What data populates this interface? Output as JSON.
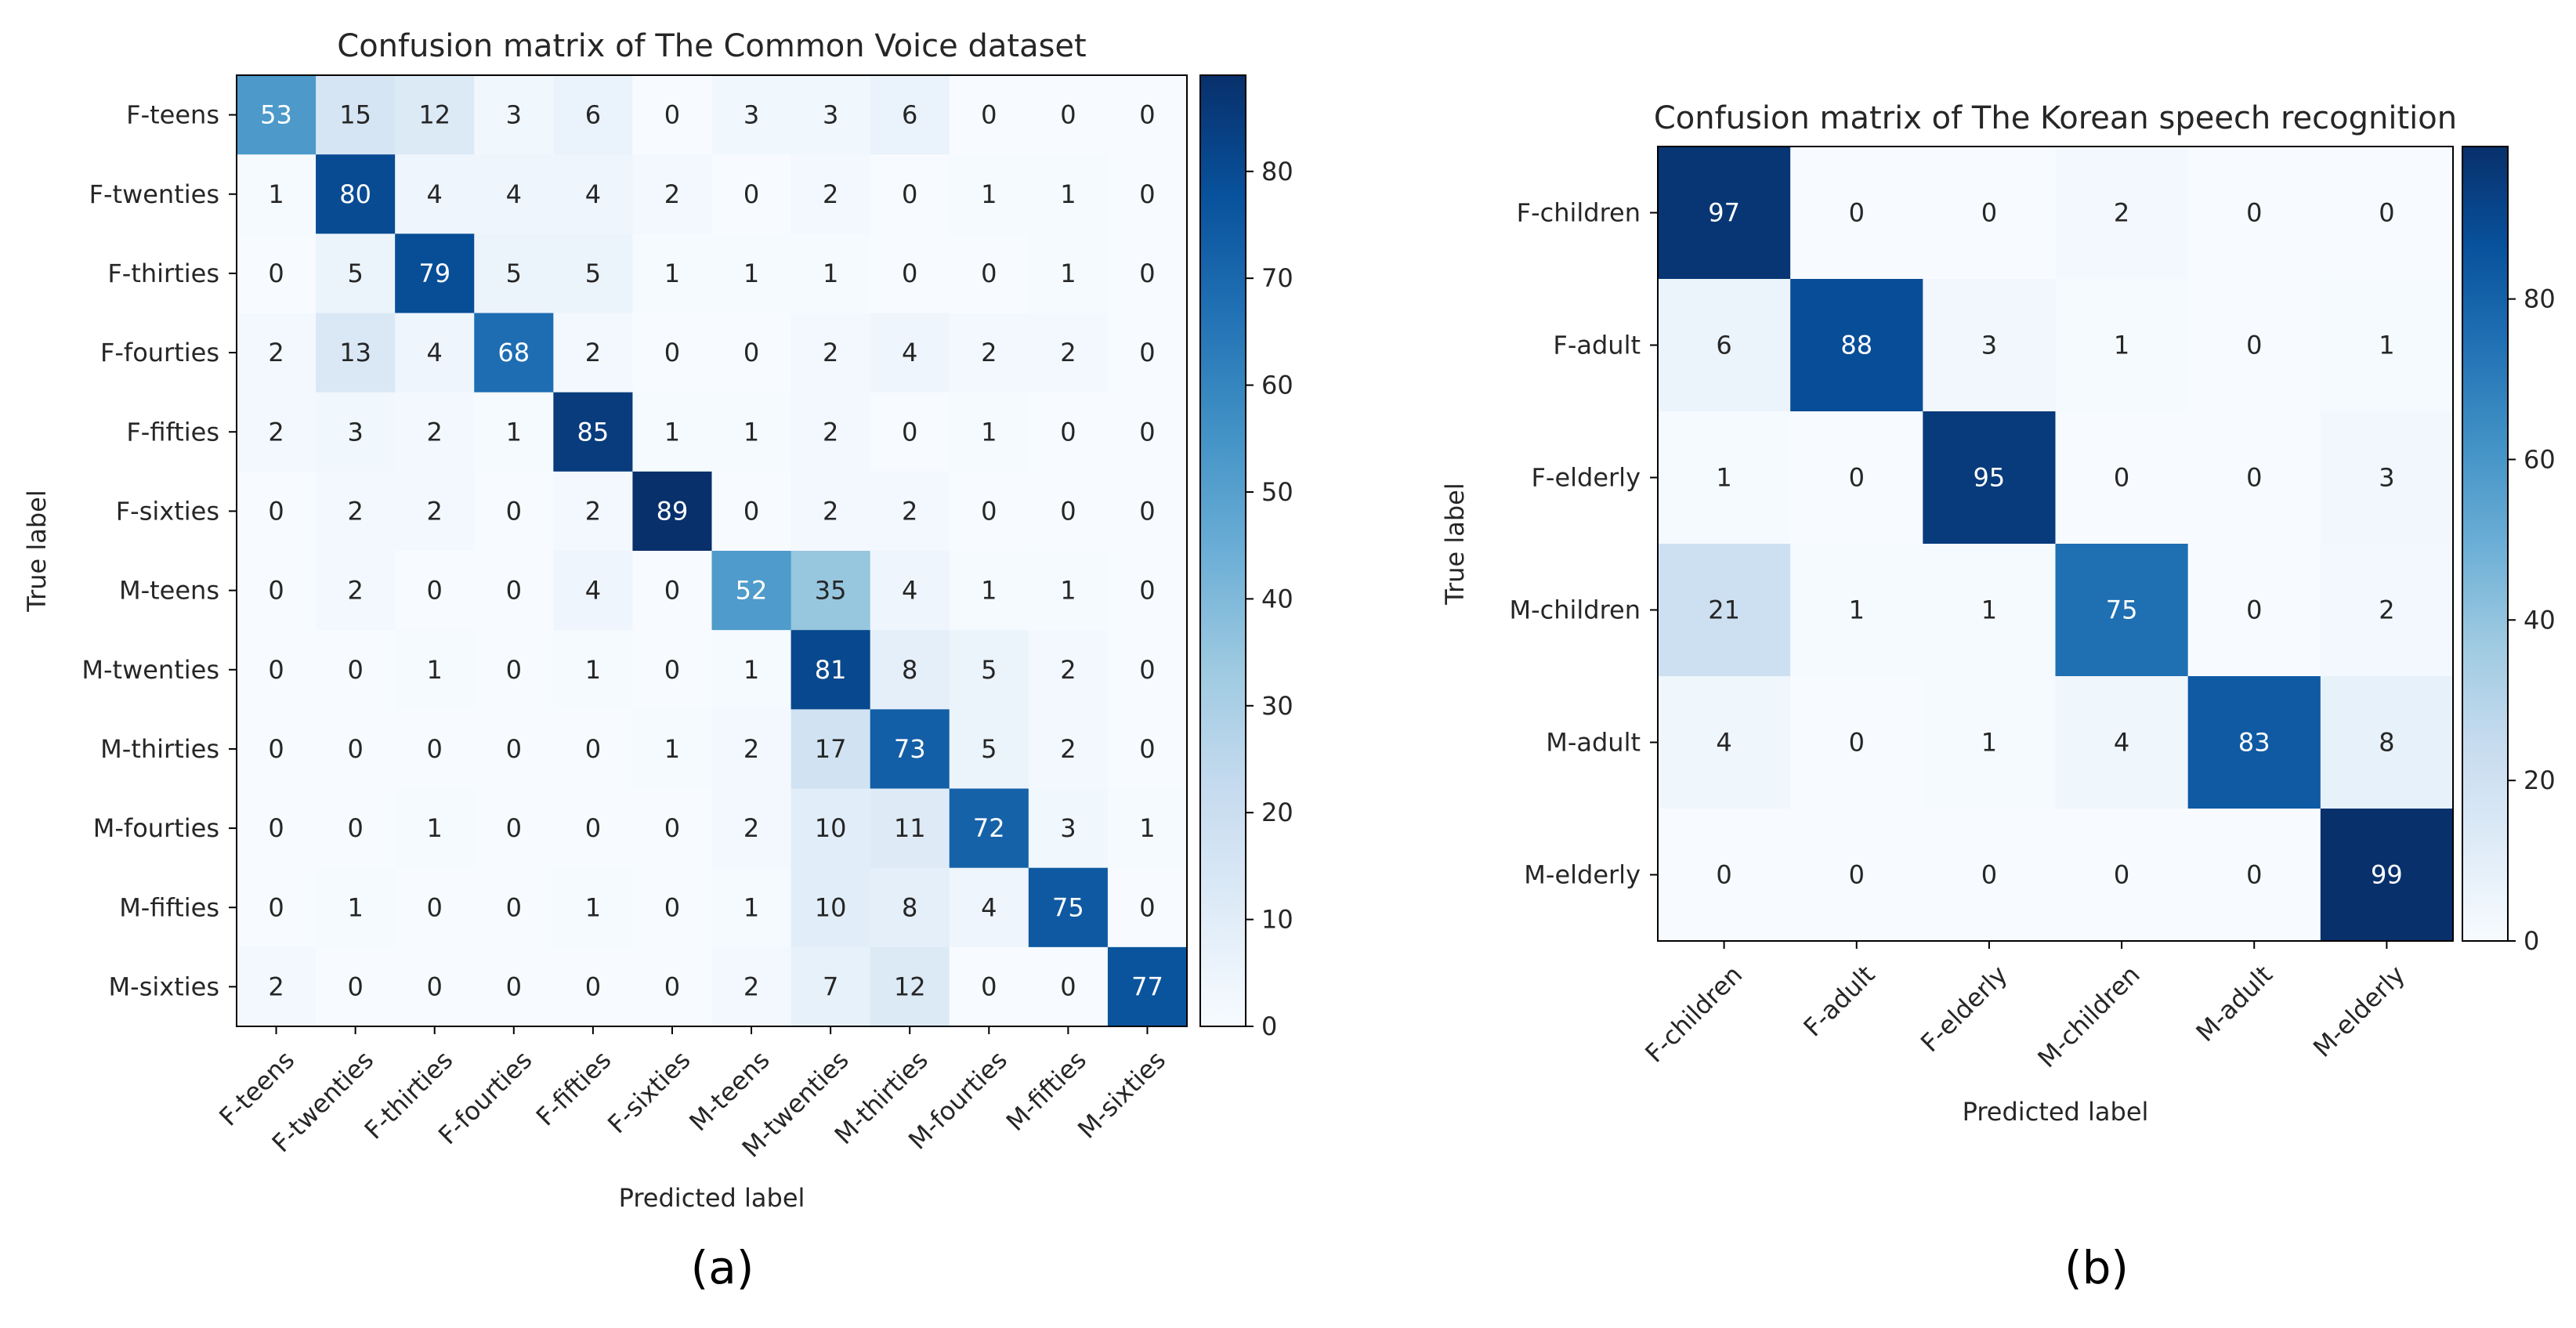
{
  "figure": {
    "panel_labels": [
      "(a)",
      "(b)"
    ]
  },
  "colors": {
    "cmap_low": "#f7fbff",
    "cmap_high": "#08306b",
    "text_dark": "#262626",
    "text_light": "#ffffff"
  },
  "chart_data": [
    {
      "type": "heatmap",
      "title": "Confusion matrix of The Common Voice dataset",
      "xlabel": "Predicted label",
      "ylabel": "True label",
      "row_labels": [
        "F-teens",
        "F-twenties",
        "F-thirties",
        "F-fourties",
        "F-fifties",
        "F-sixties",
        "M-teens",
        "M-twenties",
        "M-thirties",
        "M-fourties",
        "M-fifties",
        "M-sixties"
      ],
      "col_labels": [
        "F-teens",
        "F-twenties",
        "F-thirties",
        "F-fourties",
        "F-fifties",
        "F-sixties",
        "M-teens",
        "M-twenties",
        "M-thirties",
        "M-fourties",
        "M-fifties",
        "M-sixties"
      ],
      "matrix": [
        [
          53,
          15,
          12,
          3,
          6,
          0,
          3,
          3,
          6,
          0,
          0,
          0
        ],
        [
          1,
          80,
          4,
          4,
          4,
          2,
          0,
          2,
          0,
          1,
          1,
          0
        ],
        [
          0,
          5,
          79,
          5,
          5,
          1,
          1,
          1,
          0,
          0,
          1,
          0
        ],
        [
          2,
          13,
          4,
          68,
          2,
          0,
          0,
          2,
          4,
          2,
          2,
          0
        ],
        [
          2,
          3,
          2,
          1,
          85,
          1,
          1,
          2,
          0,
          1,
          0,
          0
        ],
        [
          0,
          2,
          2,
          0,
          2,
          89,
          0,
          2,
          2,
          0,
          0,
          0
        ],
        [
          0,
          2,
          0,
          0,
          4,
          0,
          52,
          35,
          4,
          1,
          1,
          0
        ],
        [
          0,
          0,
          1,
          0,
          1,
          0,
          1,
          81,
          8,
          5,
          2,
          0
        ],
        [
          0,
          0,
          0,
          0,
          0,
          1,
          2,
          17,
          73,
          5,
          2,
          0
        ],
        [
          0,
          0,
          1,
          0,
          0,
          0,
          2,
          10,
          11,
          72,
          3,
          1
        ],
        [
          0,
          1,
          0,
          0,
          1,
          0,
          1,
          10,
          8,
          4,
          75,
          0
        ],
        [
          2,
          0,
          0,
          0,
          0,
          0,
          2,
          7,
          12,
          0,
          0,
          77
        ]
      ],
      "vmin": 0,
      "vmax": 89,
      "colorbar_ticks": [
        0,
        10,
        20,
        30,
        40,
        50,
        60,
        70,
        80
      ]
    },
    {
      "type": "heatmap",
      "title": "Confusion matrix of The Korean speech recognition",
      "xlabel": "Predicted label",
      "ylabel": "True label",
      "row_labels": [
        "F-children",
        "F-adult",
        "F-elderly",
        "M-children",
        "M-adult",
        "M-elderly"
      ],
      "col_labels": [
        "F-children",
        "F-adult",
        "F-elderly",
        "M-children",
        "M-adult",
        "M-elderly"
      ],
      "matrix": [
        [
          97,
          0,
          0,
          2,
          0,
          0
        ],
        [
          6,
          88,
          3,
          1,
          0,
          1
        ],
        [
          1,
          0,
          95,
          0,
          0,
          3
        ],
        [
          21,
          1,
          1,
          75,
          0,
          2
        ],
        [
          4,
          0,
          1,
          4,
          83,
          8
        ],
        [
          0,
          0,
          0,
          0,
          0,
          99
        ]
      ],
      "vmin": 0,
      "vmax": 99,
      "colorbar_ticks": [
        0,
        20,
        40,
        60,
        80
      ]
    }
  ]
}
